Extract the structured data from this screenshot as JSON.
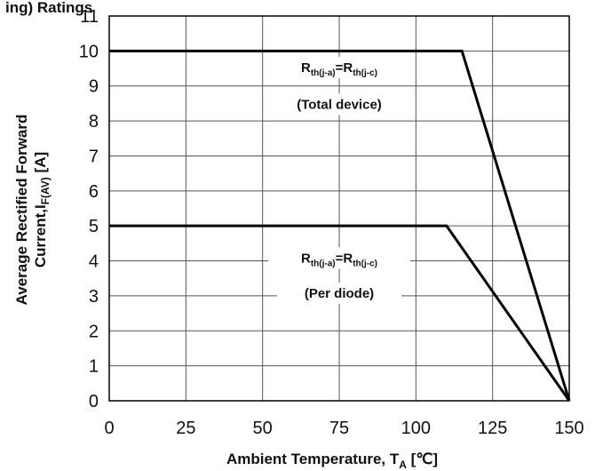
{
  "chart_data": {
    "type": "line",
    "title_fragment": "ing) Ratings",
    "xlabel": {
      "main": "Ambient Temperature,  T",
      "sub": "A",
      "unit": " [℃]"
    },
    "ylabel": {
      "line1": "Average Rectified Forward",
      "line2_main": "Current,I",
      "line2_sub": "F(AV)",
      "line2_unit": " [A]"
    },
    "xlim": [
      0,
      150
    ],
    "ylim": [
      0,
      11
    ],
    "xticks": [
      0,
      25,
      50,
      75,
      100,
      125,
      150
    ],
    "yticks": [
      0,
      1,
      2,
      3,
      4,
      5,
      6,
      7,
      8,
      9,
      10,
      11
    ],
    "grid": true,
    "series": [
      {
        "x": [
          0,
          115,
          150
        ],
        "y": [
          10,
          10,
          0
        ]
      },
      {
        "x": [
          0,
          110,
          150
        ],
        "y": [
          5,
          5,
          0
        ]
      }
    ],
    "annotations": [
      {
        "x": 75,
        "y": 9.4,
        "part1": "R",
        "sub1": "th(j-a)",
        "eq": "=",
        "part2": "R",
        "sub2": "th(j-c)",
        "line2": "(Total device)",
        "line2_y": 8.35
      },
      {
        "x": 75,
        "y": 3.95,
        "part1": "R",
        "sub1": "th(j-a)",
        "eq": "=",
        "part2": "R",
        "sub2": "th(j-c)",
        "line2": "(Per diode)",
        "line2_y": 2.95
      }
    ]
  }
}
